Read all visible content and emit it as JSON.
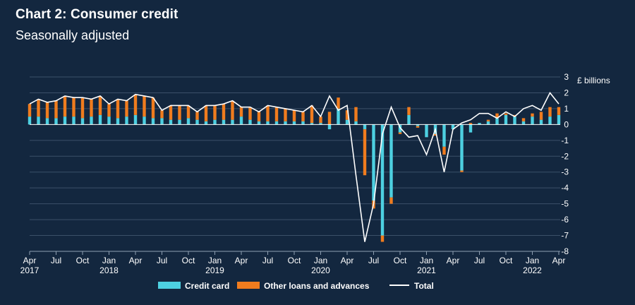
{
  "chart_data": {
    "type": "bar",
    "title": "Chart 2: Consumer credit",
    "subtitle": "Seasonally adjusted",
    "ylabel": "£ billions",
    "ylim": [
      -8,
      3
    ],
    "yticks": [
      "3",
      "2",
      "1",
      "0",
      "-1",
      "-2",
      "-3",
      "-4",
      "-5",
      "-6",
      "-7",
      "-8"
    ],
    "grid": true,
    "legend_position": "bottom",
    "x_tick_months": [
      "Apr",
      "Jul",
      "Oct",
      "Jan",
      "Apr",
      "Jul",
      "Oct",
      "Jan",
      "Apr",
      "Jul",
      "Oct",
      "Jan",
      "Apr",
      "Jul",
      "Oct",
      "Jan",
      "Apr",
      "Jul",
      "Oct",
      "Jan",
      "Apr"
    ],
    "x_tick_years": [
      "2017",
      "",
      "",
      "2018",
      "",
      "",
      "",
      "2019",
      "",
      "",
      "",
      "2020",
      "",
      "",
      "",
      "2021",
      "",
      "",
      "",
      "2022",
      ""
    ],
    "categories": [
      "Apr 2017",
      "May 2017",
      "Jun 2017",
      "Jul 2017",
      "Aug 2017",
      "Sep 2017",
      "Oct 2017",
      "Nov 2017",
      "Dec 2017",
      "Jan 2018",
      "Feb 2018",
      "Mar 2018",
      "Apr 2018",
      "May 2018",
      "Jun 2018",
      "Jul 2018",
      "Aug 2018",
      "Sep 2018",
      "Oct 2018",
      "Nov 2018",
      "Dec 2018",
      "Jan 2019",
      "Feb 2019",
      "Mar 2019",
      "Apr 2019",
      "May 2019",
      "Jun 2019",
      "Jul 2019",
      "Aug 2019",
      "Sep 2019",
      "Oct 2019",
      "Nov 2019",
      "Dec 2019",
      "Jan 2020",
      "Feb 2020",
      "Mar 2020",
      "Apr 2020",
      "May 2020",
      "Jun 2020",
      "Jul 2020",
      "Aug 2020",
      "Sep 2020",
      "Oct 2020",
      "Nov 2020",
      "Dec 2020",
      "Jan 2021",
      "Feb 2021",
      "Mar 2021",
      "Apr 2021",
      "May 2021",
      "Jun 2021",
      "Jul 2021",
      "Aug 2021",
      "Sep 2021",
      "Oct 2021",
      "Nov 2021",
      "Dec 2021",
      "Jan 2022",
      "Feb 2022",
      "Mar 2022",
      "Apr 2022"
    ],
    "series": [
      {
        "name": "Credit card",
        "color": "#4dd0e1",
        "values": [
          0.5,
          0.5,
          0.4,
          0.4,
          0.5,
          0.5,
          0.4,
          0.5,
          0.6,
          0.5,
          0.4,
          0.5,
          0.6,
          0.5,
          0.4,
          0.4,
          0.3,
          0.3,
          0.4,
          0.3,
          0.2,
          0.3,
          0.3,
          0.3,
          0.5,
          0.3,
          0.2,
          0.2,
          0.2,
          0.2,
          0.2,
          0.2,
          0.1,
          0.1,
          -0.3,
          1.0,
          0.3,
          0.2,
          -0.3,
          -4.8,
          -7.0,
          -4.6,
          -0.5,
          0.6,
          -0.1,
          -0.8,
          -0.6,
          -1.4,
          -0.3,
          -2.9,
          -0.5,
          0.1,
          0.2,
          0.4,
          0.6,
          0.5,
          0.2,
          0.5,
          0.3,
          0.5,
          0.6
        ]
      },
      {
        "name": "Other loans and advances",
        "color": "#f07c1e",
        "values": [
          0.8,
          1.1,
          1.0,
          1.1,
          1.3,
          1.2,
          1.3,
          1.1,
          1.2,
          0.8,
          1.2,
          1.0,
          1.3,
          1.3,
          1.3,
          0.5,
          0.9,
          0.9,
          0.8,
          0.5,
          1.0,
          0.9,
          1.0,
          1.2,
          0.6,
          0.8,
          0.6,
          1.0,
          0.9,
          0.8,
          0.7,
          0.6,
          1.1,
          0.4,
          0.8,
          0.7,
          0.6,
          0.9,
          -2.9,
          -0.5,
          -0.4,
          -0.4,
          -0.1,
          0.5,
          -0.1,
          0.0,
          -0.1,
          -0.5,
          0.0,
          -0.1,
          0.1,
          0.0,
          0.1,
          0.3,
          0.1,
          0.1,
          0.2,
          0.2,
          0.5,
          0.6,
          0.5
        ]
      },
      {
        "name": "Total",
        "color": "#ffffff",
        "type": "line",
        "values": [
          1.3,
          1.6,
          1.4,
          1.5,
          1.8,
          1.7,
          1.7,
          1.6,
          1.8,
          1.3,
          1.6,
          1.5,
          1.9,
          1.8,
          1.7,
          0.9,
          1.2,
          1.2,
          1.2,
          0.8,
          1.2,
          1.2,
          1.3,
          1.5,
          1.1,
          1.1,
          0.8,
          1.2,
          1.1,
          1.0,
          0.9,
          0.8,
          1.2,
          0.5,
          1.8,
          0.9,
          1.2,
          -3.2,
          -7.4,
          -5.0,
          -0.6,
          1.1,
          -0.2,
          -0.8,
          -0.7,
          -1.9,
          -0.3,
          -3.0,
          -0.3,
          0.1,
          0.3,
          0.7,
          0.7,
          0.4,
          0.8,
          0.5,
          1.0,
          1.2,
          0.9,
          2.0,
          1.3
        ]
      }
    ],
    "legend": [
      "Credit card",
      "Other loans and advances",
      "Total"
    ]
  }
}
